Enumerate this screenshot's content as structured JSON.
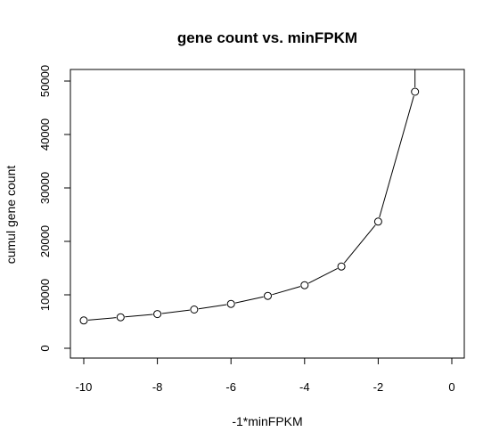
{
  "chart_data": {
    "type": "line",
    "title": "gene count vs. minFPKM",
    "xlabel": "-1*minFPKM",
    "ylabel": "cumul gene count",
    "x": [
      -10,
      -9,
      -8,
      -7,
      -6,
      -5,
      -4,
      -3,
      -2,
      -1
    ],
    "series": [
      {
        "values": [
          5200,
          5800,
          6400,
          7250,
          8300,
          9800,
          11800,
          15300,
          23700,
          48000
        ]
      }
    ],
    "xlim": [
      -10,
      0
    ],
    "ylim": [
      0,
      50000
    ],
    "xticks": [
      -10,
      -8,
      -6,
      -4,
      -2,
      0
    ],
    "yticks": [
      0,
      10000,
      20000,
      30000,
      40000,
      50000
    ],
    "xtick_labels": [
      "-10",
      "-8",
      "-6",
      "-4",
      "-2",
      "0"
    ],
    "ytick_labels": [
      "0",
      "10000",
      "20000",
      "30000",
      "40000",
      "50000"
    ],
    "marker": "open-circle",
    "grid": false,
    "legend": "none"
  }
}
